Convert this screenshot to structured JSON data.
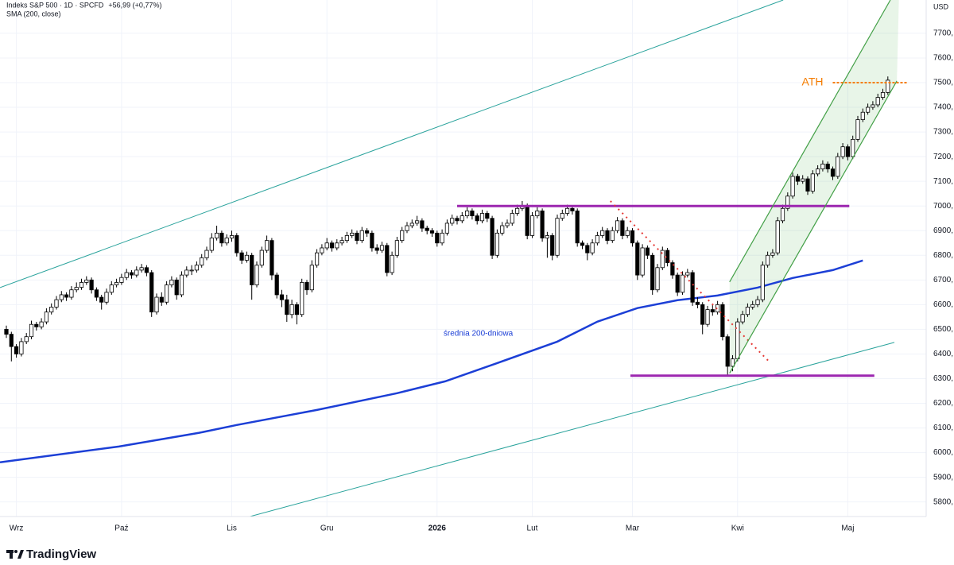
{
  "chart_data": {
    "type": "candlestick",
    "title": "Indeks S&P 500 · 1D · SPCFD",
    "change": "+56,99 (+0,77%)",
    "currency": "USD",
    "logo": "TradingView",
    "xlim": [
      -1.27,
      183.65
    ],
    "ylim": [
      5741,
      7835
    ],
    "grid": true,
    "up_color": "#ffffff",
    "down_color": "#000000",
    "xticks": [
      {
        "value": 2,
        "label": "Wrz"
      },
      {
        "value": 23,
        "label": "Paź"
      },
      {
        "value": 45,
        "label": "Lis"
      },
      {
        "value": 64,
        "label": "Gru"
      },
      {
        "value": 86,
        "label": "2026"
      },
      {
        "value": 105,
        "label": "Lut"
      },
      {
        "value": 125,
        "label": "Mar"
      },
      {
        "value": 146,
        "label": "Kwi"
      },
      {
        "value": 168,
        "label": "Maj"
      }
    ],
    "yticks": [
      {
        "value": 5800,
        "label": "5800,"
      },
      {
        "value": 5900,
        "label": "5900,"
      },
      {
        "value": 6000,
        "label": "6000,"
      },
      {
        "value": 6100,
        "label": "6100,"
      },
      {
        "value": 6200,
        "label": "6200,"
      },
      {
        "value": 6300,
        "label": "6300,"
      },
      {
        "value": 6400,
        "label": "6400,"
      },
      {
        "value": 6500,
        "label": "6500,"
      },
      {
        "value": 6600,
        "label": "6600,"
      },
      {
        "value": 6700,
        "label": "6700,"
      },
      {
        "value": 6800,
        "label": "6800,"
      },
      {
        "value": 6900,
        "label": "6900,"
      },
      {
        "value": 7000,
        "label": "7000,"
      },
      {
        "value": 7100,
        "label": "7100,"
      },
      {
        "value": 7200,
        "label": "7200,"
      },
      {
        "value": 7300,
        "label": "7300,"
      },
      {
        "value": 7400,
        "label": "7400,"
      },
      {
        "value": 7500,
        "label": "7500,"
      },
      {
        "value": 7600,
        "label": "7600,"
      },
      {
        "value": 7700,
        "label": "7700,"
      }
    ],
    "ohlc": [
      [
        6500,
        6515,
        6465,
        6480
      ],
      [
        6480,
        6490,
        6370,
        6430
      ],
      [
        6430,
        6440,
        6385,
        6400
      ],
      [
        6400,
        6465,
        6390,
        6450
      ],
      [
        6450,
        6485,
        6440,
        6470
      ],
      [
        6470,
        6535,
        6460,
        6520
      ],
      [
        6520,
        6530,
        6495,
        6510
      ],
      [
        6510,
        6545,
        6500,
        6530
      ],
      [
        6530,
        6585,
        6520,
        6570
      ],
      [
        6570,
        6605,
        6560,
        6590
      ],
      [
        6590,
        6635,
        6580,
        6620
      ],
      [
        6620,
        6655,
        6610,
        6640
      ],
      [
        6640,
        6650,
        6615,
        6630
      ],
      [
        6630,
        6675,
        6620,
        6660
      ],
      [
        6660,
        6690,
        6650,
        6670
      ],
      [
        6670,
        6705,
        6660,
        6690
      ],
      [
        6690,
        6715,
        6680,
        6700
      ],
      [
        6700,
        6710,
        6645,
        6660
      ],
      [
        6660,
        6670,
        6615,
        6630
      ],
      [
        6630,
        6640,
        6580,
        6610
      ],
      [
        6610,
        6665,
        6600,
        6650
      ],
      [
        6650,
        6695,
        6640,
        6680
      ],
      [
        6680,
        6705,
        6670,
        6690
      ],
      [
        6690,
        6725,
        6680,
        6710
      ],
      [
        6710,
        6745,
        6700,
        6730
      ],
      [
        6730,
        6740,
        6705,
        6720
      ],
      [
        6720,
        6755,
        6710,
        6740
      ],
      [
        6740,
        6765,
        6730,
        6750
      ],
      [
        6750,
        6760,
        6715,
        6730
      ],
      [
        6730,
        6740,
        6550,
        6570
      ],
      [
        6570,
        6645,
        6560,
        6630
      ],
      [
        6630,
        6650,
        6595,
        6610
      ],
      [
        6610,
        6695,
        6600,
        6680
      ],
      [
        6680,
        6715,
        6670,
        6700
      ],
      [
        6700,
        6710,
        6620,
        6640
      ],
      [
        6640,
        6735,
        6630,
        6720
      ],
      [
        6720,
        6755,
        6710,
        6740
      ],
      [
        6740,
        6760,
        6720,
        6740
      ],
      [
        6740,
        6775,
        6730,
        6760
      ],
      [
        6760,
        6805,
        6750,
        6790
      ],
      [
        6790,
        6835,
        6780,
        6820
      ],
      [
        6820,
        6890,
        6810,
        6870
      ],
      [
        6870,
        6920,
        6860,
        6890
      ],
      [
        6890,
        6900,
        6835,
        6850
      ],
      [
        6850,
        6885,
        6840,
        6870
      ],
      [
        6870,
        6900,
        6855,
        6880
      ],
      [
        6880,
        6890,
        6795,
        6810
      ],
      [
        6810,
        6820,
        6765,
        6780
      ],
      [
        6780,
        6815,
        6770,
        6800
      ],
      [
        6800,
        6810,
        6620,
        6680
      ],
      [
        6680,
        6775,
        6670,
        6760
      ],
      [
        6760,
        6835,
        6750,
        6820
      ],
      [
        6820,
        6880,
        6810,
        6860
      ],
      [
        6860,
        6870,
        6700,
        6720
      ],
      [
        6720,
        6730,
        6625,
        6640
      ],
      [
        6640,
        6660,
        6590,
        6620
      ],
      [
        6620,
        6640,
        6530,
        6560
      ],
      [
        6560,
        6620,
        6545,
        6600
      ],
      [
        6600,
        6610,
        6520,
        6560
      ],
      [
        6560,
        6705,
        6550,
        6690
      ],
      [
        6690,
        6700,
        6640,
        6660
      ],
      [
        6660,
        6780,
        6650,
        6760
      ],
      [
        6760,
        6825,
        6750,
        6810
      ],
      [
        6810,
        6845,
        6800,
        6830
      ],
      [
        6830,
        6870,
        6820,
        6850
      ],
      [
        6850,
        6860,
        6815,
        6830
      ],
      [
        6830,
        6865,
        6820,
        6850
      ],
      [
        6850,
        6875,
        6840,
        6860
      ],
      [
        6860,
        6895,
        6850,
        6880
      ],
      [
        6880,
        6905,
        6870,
        6890
      ],
      [
        6890,
        6900,
        6845,
        6860
      ],
      [
        6860,
        6915,
        6850,
        6900
      ],
      [
        6900,
        6910,
        6875,
        6890
      ],
      [
        6890,
        6900,
        6815,
        6830
      ],
      [
        6830,
        6845,
        6805,
        6820
      ],
      [
        6820,
        6855,
        6810,
        6840
      ],
      [
        6840,
        6850,
        6715,
        6730
      ],
      [
        6730,
        6815,
        6720,
        6800
      ],
      [
        6800,
        6875,
        6790,
        6860
      ],
      [
        6860,
        6915,
        6850,
        6900
      ],
      [
        6900,
        6935,
        6890,
        6920
      ],
      [
        6920,
        6945,
        6910,
        6930
      ],
      [
        6930,
        6960,
        6920,
        6940
      ],
      [
        6940,
        6950,
        6895,
        6910
      ],
      [
        6910,
        6920,
        6885,
        6900
      ],
      [
        6900,
        6910,
        6875,
        6890
      ],
      [
        6890,
        6900,
        6835,
        6850
      ],
      [
        6850,
        6905,
        6840,
        6890
      ],
      [
        6890,
        6945,
        6880,
        6930
      ],
      [
        6930,
        6965,
        6920,
        6950
      ],
      [
        6950,
        6960,
        6925,
        6940
      ],
      [
        6940,
        6975,
        6930,
        6960
      ],
      [
        6960,
        6995,
        6950,
        6980
      ],
      [
        6980,
        6990,
        6945,
        6960
      ],
      [
        6960,
        6970,
        6925,
        6940
      ],
      [
        6940,
        6985,
        6930,
        6970
      ],
      [
        6970,
        6980,
        6935,
        6950
      ],
      [
        6950,
        6960,
        6785,
        6800
      ],
      [
        6800,
        6905,
        6790,
        6890
      ],
      [
        6890,
        6935,
        6880,
        6920
      ],
      [
        6920,
        6945,
        6910,
        6930
      ],
      [
        6930,
        6985,
        6920,
        6970
      ],
      [
        6970,
        7005,
        6960,
        6990
      ],
      [
        6990,
        7020,
        6980,
        7000
      ],
      [
        7000,
        7010,
        6865,
        6880
      ],
      [
        6880,
        6975,
        6870,
        6960
      ],
      [
        6960,
        6995,
        6950,
        6980
      ],
      [
        6980,
        6990,
        6855,
        6870
      ],
      [
        6870,
        6895,
        6790,
        6880
      ],
      [
        6880,
        6890,
        6780,
        6800
      ],
      [
        6800,
        6965,
        6790,
        6950
      ],
      [
        6950,
        6985,
        6940,
        6970
      ],
      [
        6970,
        7005,
        6960,
        6990
      ],
      [
        6990,
        7000,
        6965,
        6980
      ],
      [
        6980,
        6990,
        6835,
        6850
      ],
      [
        6850,
        6860,
        6825,
        6840
      ],
      [
        6840,
        6850,
        6780,
        6810
      ],
      [
        6810,
        6865,
        6800,
        6850
      ],
      [
        6850,
        6895,
        6840,
        6880
      ],
      [
        6880,
        6915,
        6870,
        6900
      ],
      [
        6900,
        6910,
        6845,
        6860
      ],
      [
        6860,
        6915,
        6850,
        6900
      ],
      [
        6900,
        6955,
        6890,
        6940
      ],
      [
        6940,
        6950,
        6865,
        6880
      ],
      [
        6880,
        6915,
        6870,
        6900
      ],
      [
        6900,
        6910,
        6835,
        6850
      ],
      [
        6850,
        6860,
        6700,
        6720
      ],
      [
        6720,
        6845,
        6710,
        6830
      ],
      [
        6830,
        6840,
        6785,
        6800
      ],
      [
        6800,
        6810,
        6640,
        6660
      ],
      [
        6660,
        6765,
        6650,
        6750
      ],
      [
        6750,
        6835,
        6740,
        6820
      ],
      [
        6820,
        6830,
        6755,
        6770
      ],
      [
        6770,
        6780,
        6705,
        6720
      ],
      [
        6720,
        6730,
        6635,
        6650
      ],
      [
        6650,
        6735,
        6640,
        6720
      ],
      [
        6720,
        6745,
        6710,
        6730
      ],
      [
        6730,
        6740,
        6595,
        6610
      ],
      [
        6610,
        6630,
        6585,
        6600
      ],
      [
        6600,
        6610,
        6480,
        6520
      ],
      [
        6520,
        6595,
        6510,
        6580
      ],
      [
        6580,
        6600,
        6555,
        6570
      ],
      [
        6570,
        6615,
        6560,
        6600
      ],
      [
        6600,
        6610,
        6455,
        6470
      ],
      [
        6470,
        6480,
        6316,
        6350
      ],
      [
        6350,
        6395,
        6330,
        6380
      ],
      [
        6380,
        6545,
        6370,
        6530
      ],
      [
        6530,
        6575,
        6520,
        6560
      ],
      [
        6560,
        6605,
        6550,
        6590
      ],
      [
        6590,
        6615,
        6580,
        6600
      ],
      [
        6600,
        6635,
        6590,
        6620
      ],
      [
        6620,
        6775,
        6610,
        6760
      ],
      [
        6760,
        6815,
        6750,
        6800
      ],
      [
        6800,
        6825,
        6790,
        6810
      ],
      [
        6810,
        6955,
        6800,
        6940
      ],
      [
        6940,
        7005,
        6930,
        6990
      ],
      [
        6990,
        7055,
        6980,
        7040
      ],
      [
        7040,
        7135,
        7030,
        7120
      ],
      [
        7120,
        7130,
        7085,
        7100
      ],
      [
        7100,
        7125,
        7090,
        7110
      ],
      [
        7110,
        7120,
        7045,
        7060
      ],
      [
        7060,
        7145,
        7050,
        7130
      ],
      [
        7130,
        7165,
        7120,
        7150
      ],
      [
        7150,
        7185,
        7140,
        7170
      ],
      [
        7170,
        7180,
        7135,
        7150
      ],
      [
        7150,
        7160,
        7105,
        7120
      ],
      [
        7120,
        7215,
        7110,
        7200
      ],
      [
        7200,
        7255,
        7190,
        7240
      ],
      [
        7240,
        7250,
        7185,
        7200
      ],
      [
        7200,
        7285,
        7190,
        7270
      ],
      [
        7270,
        7365,
        7260,
        7350
      ],
      [
        7350,
        7395,
        7340,
        7380
      ],
      [
        7380,
        7415,
        7370,
        7400
      ],
      [
        7400,
        7425,
        7390,
        7410
      ],
      [
        7410,
        7455,
        7400,
        7440
      ],
      [
        7440,
        7475,
        7430,
        7460
      ],
      [
        7460,
        7525,
        7450,
        7510
      ]
    ],
    "sma": {
      "name": "SMA (200, close)",
      "label": "średnia 200-dniowa",
      "color": "#1c3fd6",
      "x": [
        -1.27,
        22.5,
        38.4,
        46,
        62,
        78,
        87.6,
        98,
        110,
        118,
        126,
        134,
        142,
        150,
        157,
        165,
        171
      ],
      "values": [
        5961,
        6025,
        6080,
        6112,
        6173,
        6241,
        6289,
        6363,
        6450,
        6531,
        6586,
        6618,
        6637,
        6669,
        6708,
        6740,
        6779
      ]
    },
    "fills": [
      {
        "color": "rgba(76,175,80,0.13)",
        "points": [
          [
            144.4,
            6692
          ],
          [
            176.5,
            7835
          ],
          [
            178.2,
            7835
          ],
          [
            177.8,
            7507
          ],
          [
            144.4,
            6322
          ]
        ]
      }
    ],
    "drawings": [
      {
        "color": "#2aa39c",
        "style": "solid",
        "width": 1,
        "points": [
          [
            -1.27,
            6669
          ],
          [
            155.1,
            7835
          ]
        ]
      },
      {
        "color": "#2aa39c",
        "style": "solid",
        "width": 1,
        "points": [
          [
            45.9,
            5726
          ],
          [
            177.3,
            6447
          ]
        ]
      },
      {
        "color": "#9c27b0",
        "style": "solid",
        "width": 3,
        "points": [
          [
            90,
            7000
          ],
          [
            168.3,
            7000
          ]
        ]
      },
      {
        "color": "#9c27b0",
        "style": "solid",
        "width": 3,
        "points": [
          [
            124.6,
            6312
          ],
          [
            173.3,
            6312
          ]
        ]
      },
      {
        "color": "#e53935",
        "style": "dotted",
        "width": 2,
        "points": [
          [
            120.6,
            7020
          ],
          [
            152.4,
            6367
          ]
        ]
      },
      {
        "color": "#43a047",
        "style": "solid",
        "width": 1.2,
        "points": [
          [
            144.4,
            6322
          ],
          [
            177.8,
            7507
          ]
        ]
      },
      {
        "color": "#43a047",
        "style": "solid",
        "width": 1.2,
        "points": [
          [
            144.4,
            6692
          ],
          [
            176.5,
            7835
          ]
        ]
      },
      {
        "color": "#f57c00",
        "style": "dashed",
        "width": 2,
        "label": "ATH",
        "points": [
          [
            165,
            7500
          ],
          [
            180,
            7500
          ]
        ]
      }
    ]
  }
}
